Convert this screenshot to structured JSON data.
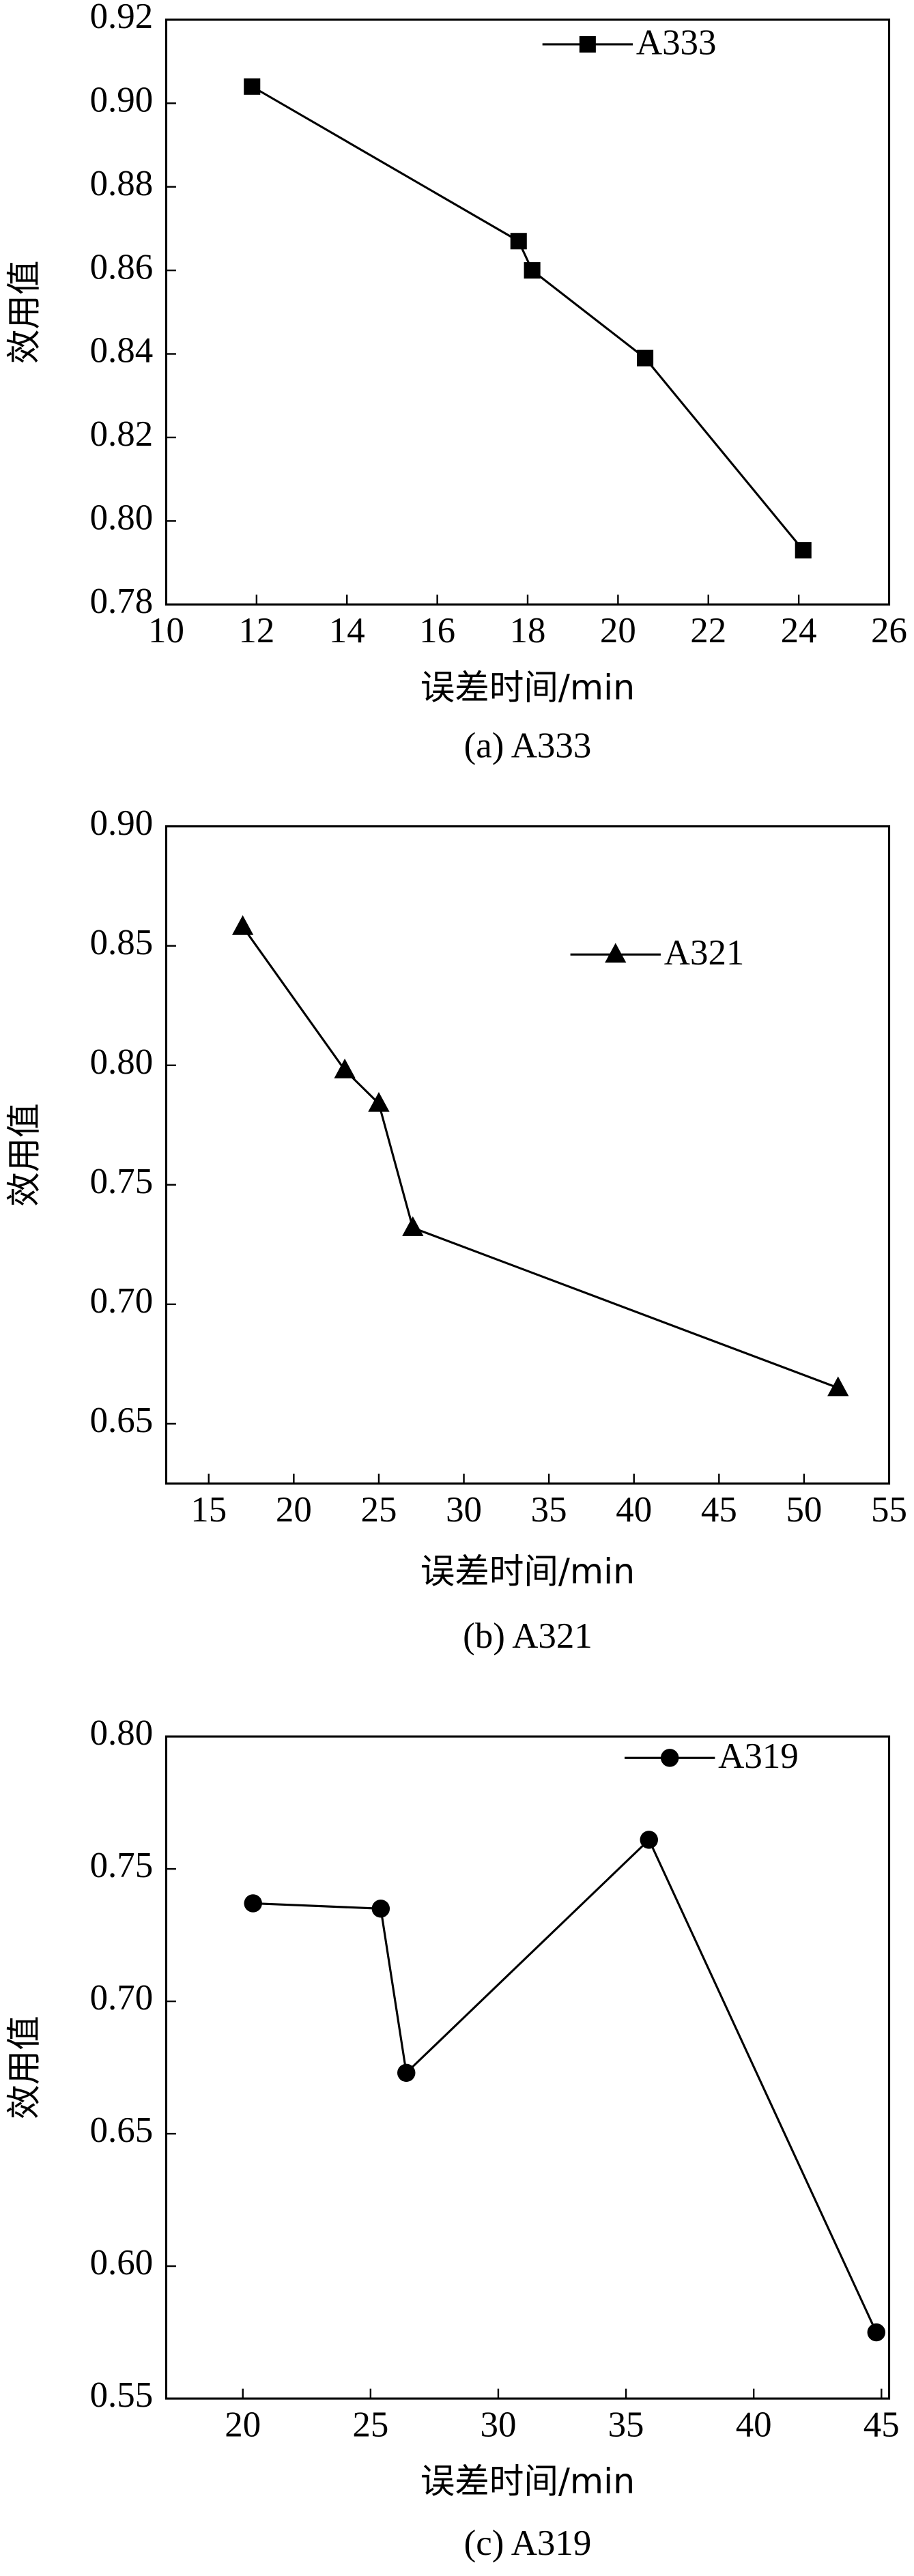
{
  "chart_data": [
    {
      "type": "line",
      "caption": "(a) A333",
      "xlabel": "误差时间/min",
      "ylabel": "效用值",
      "x": [
        11.9,
        17.8,
        18.1,
        20.6,
        24.1
      ],
      "series": [
        {
          "name": "A333",
          "color": "#000000",
          "marker": "square",
          "values": [
            0.904,
            0.867,
            0.86,
            0.839,
            0.793
          ]
        }
      ],
      "xlim": [
        10,
        26
      ],
      "xticks": [
        10,
        12,
        14,
        16,
        18,
        20,
        22,
        24,
        26
      ],
      "ylim": [
        0.78,
        0.92
      ],
      "yticks": [
        0.78,
        {
          "value": 0.8,
          "label": "0.80"
        },
        0.82,
        0.84,
        0.86,
        0.88,
        {
          "value": 0.9,
          "label": "0.90"
        },
        0.92
      ],
      "legend": "top-right",
      "grid": false
    },
    {
      "type": "line",
      "caption": "(b) A321",
      "xlabel": "误差时间/min",
      "ylabel": "效用值",
      "x": [
        17,
        23,
        25,
        27,
        52
      ],
      "series": [
        {
          "name": "A321",
          "color": "#000000",
          "marker": "triangle",
          "values": [
            0.858,
            0.798,
            0.784,
            0.732,
            0.665
          ]
        }
      ],
      "xlim": [
        12.5,
        55
      ],
      "xticks": [
        15,
        20,
        25,
        30,
        35,
        40,
        45,
        50,
        55
      ],
      "ylim": [
        0.625,
        0.9
      ],
      "yticks": [
        0.65,
        {
          "value": 0.7,
          "label": "0.70"
        },
        0.75,
        {
          "value": 0.8,
          "label": "0.80"
        },
        0.85,
        {
          "value": 0.9,
          "label": "0.90"
        }
      ],
      "legend": "top-right",
      "grid": false
    },
    {
      "type": "line",
      "caption": "(c) A319",
      "xlabel": "误差时间/min",
      "ylabel": "效用值",
      "x": [
        20.4,
        25.4,
        26.4,
        35.9,
        44.8
      ],
      "series": [
        {
          "name": "A319",
          "color": "#000000",
          "marker": "circle",
          "values": [
            0.737,
            0.735,
            0.673,
            0.761,
            0.575
          ]
        }
      ],
      "xlim": [
        17,
        45.3
      ],
      "xticks": [
        20,
        25,
        30,
        35,
        40,
        45
      ],
      "ylim": [
        0.55,
        0.8
      ],
      "yticks": [
        0.55,
        {
          "value": 0.6,
          "label": "0.60"
        },
        0.65,
        {
          "value": 0.7,
          "label": "0.70"
        },
        0.75,
        {
          "value": 0.8,
          "label": "0.80"
        }
      ],
      "legend": "top-right",
      "grid": false
    }
  ]
}
